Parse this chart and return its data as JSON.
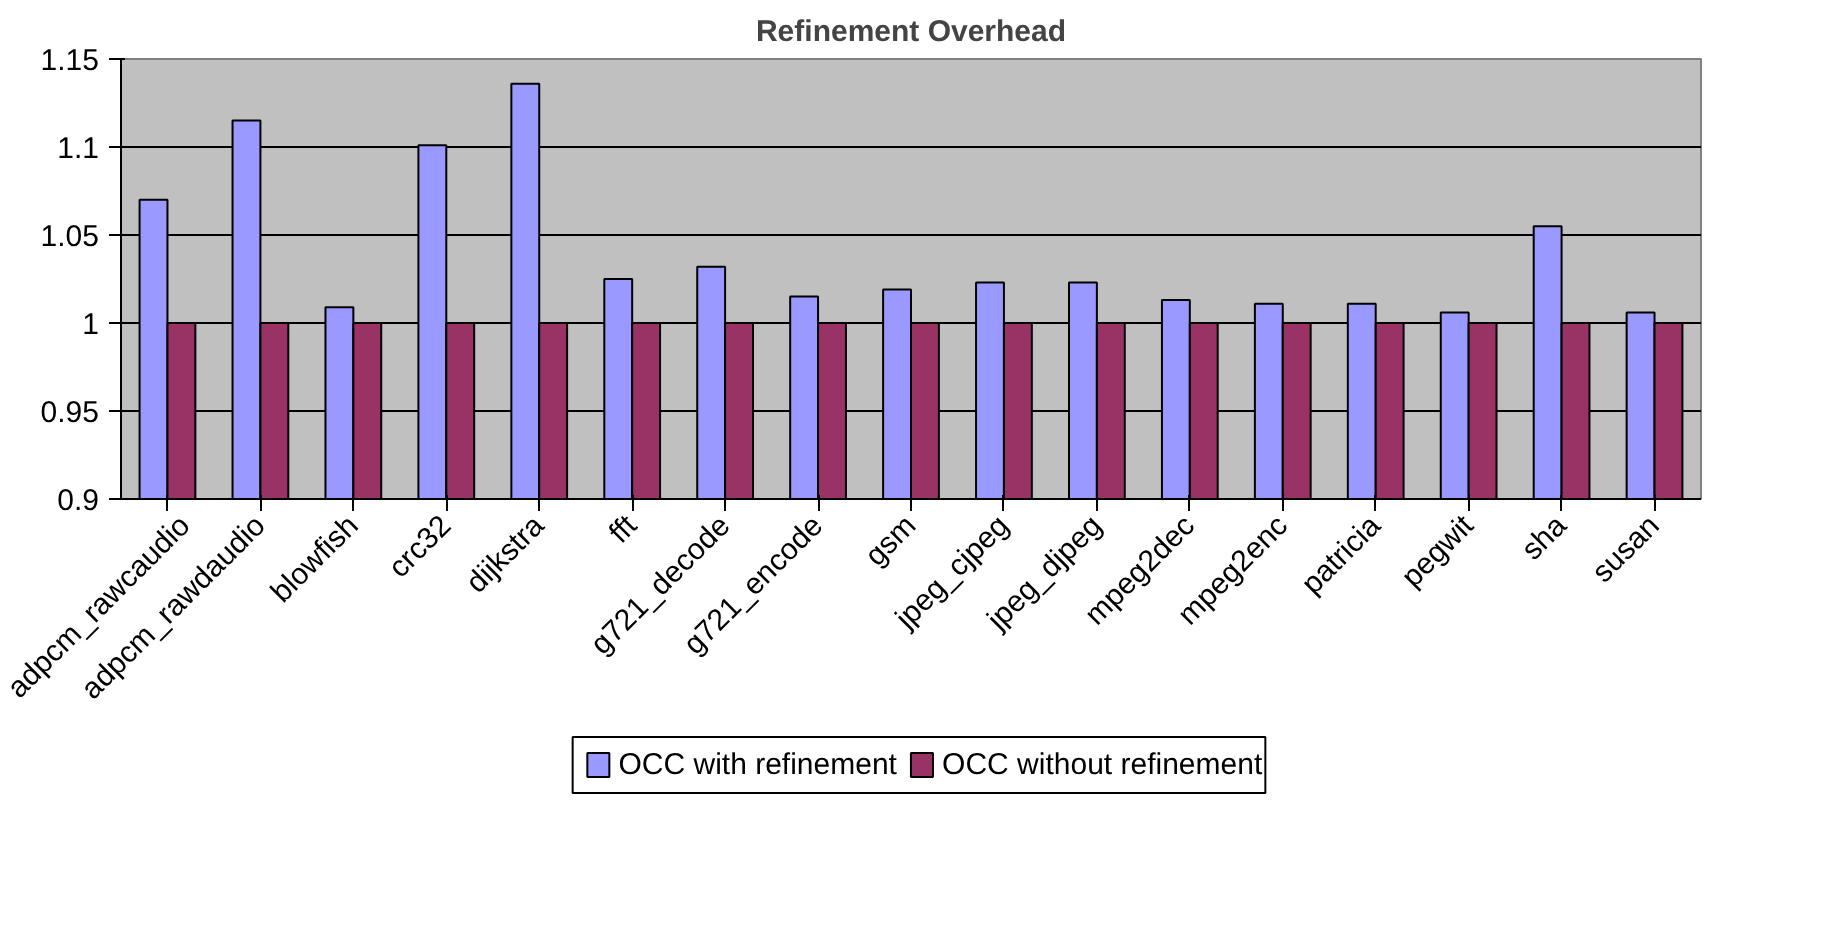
{
  "chart_data": {
    "type": "bar",
    "title": "Refinement Overhead",
    "categories": [
      "adpcm_rawcaudio",
      "adpcm_rawdaudio",
      "blowfish",
      "crc32",
      "dijkstra",
      "fft",
      "g721_decode",
      "g721_encode",
      "gsm",
      "jpeg_cjpeg",
      "jpeg_djpeg",
      "mpeg2dec",
      "mpeg2enc",
      "patricia",
      "pegwit",
      "sha",
      "susan"
    ],
    "series": [
      {
        "name": "OCC with refinement",
        "color": "#9999ff",
        "values": [
          1.07,
          1.115,
          1.009,
          1.101,
          1.136,
          1.025,
          1.032,
          1.015,
          1.019,
          1.023,
          1.023,
          1.013,
          1.011,
          1.011,
          1.006,
          1.055,
          1.006
        ]
      },
      {
        "name": "OCC without refinement",
        "color": "#993366",
        "values": [
          1,
          1,
          1,
          1,
          1,
          1,
          1,
          1,
          1,
          1,
          1,
          1,
          1,
          1,
          1,
          1,
          1
        ]
      }
    ],
    "ylim": [
      0.9,
      1.15
    ],
    "yticks": [
      0.9,
      0.95,
      1,
      1.05,
      1.1,
      1.15
    ],
    "grid": "y",
    "legend": "bottom"
  }
}
